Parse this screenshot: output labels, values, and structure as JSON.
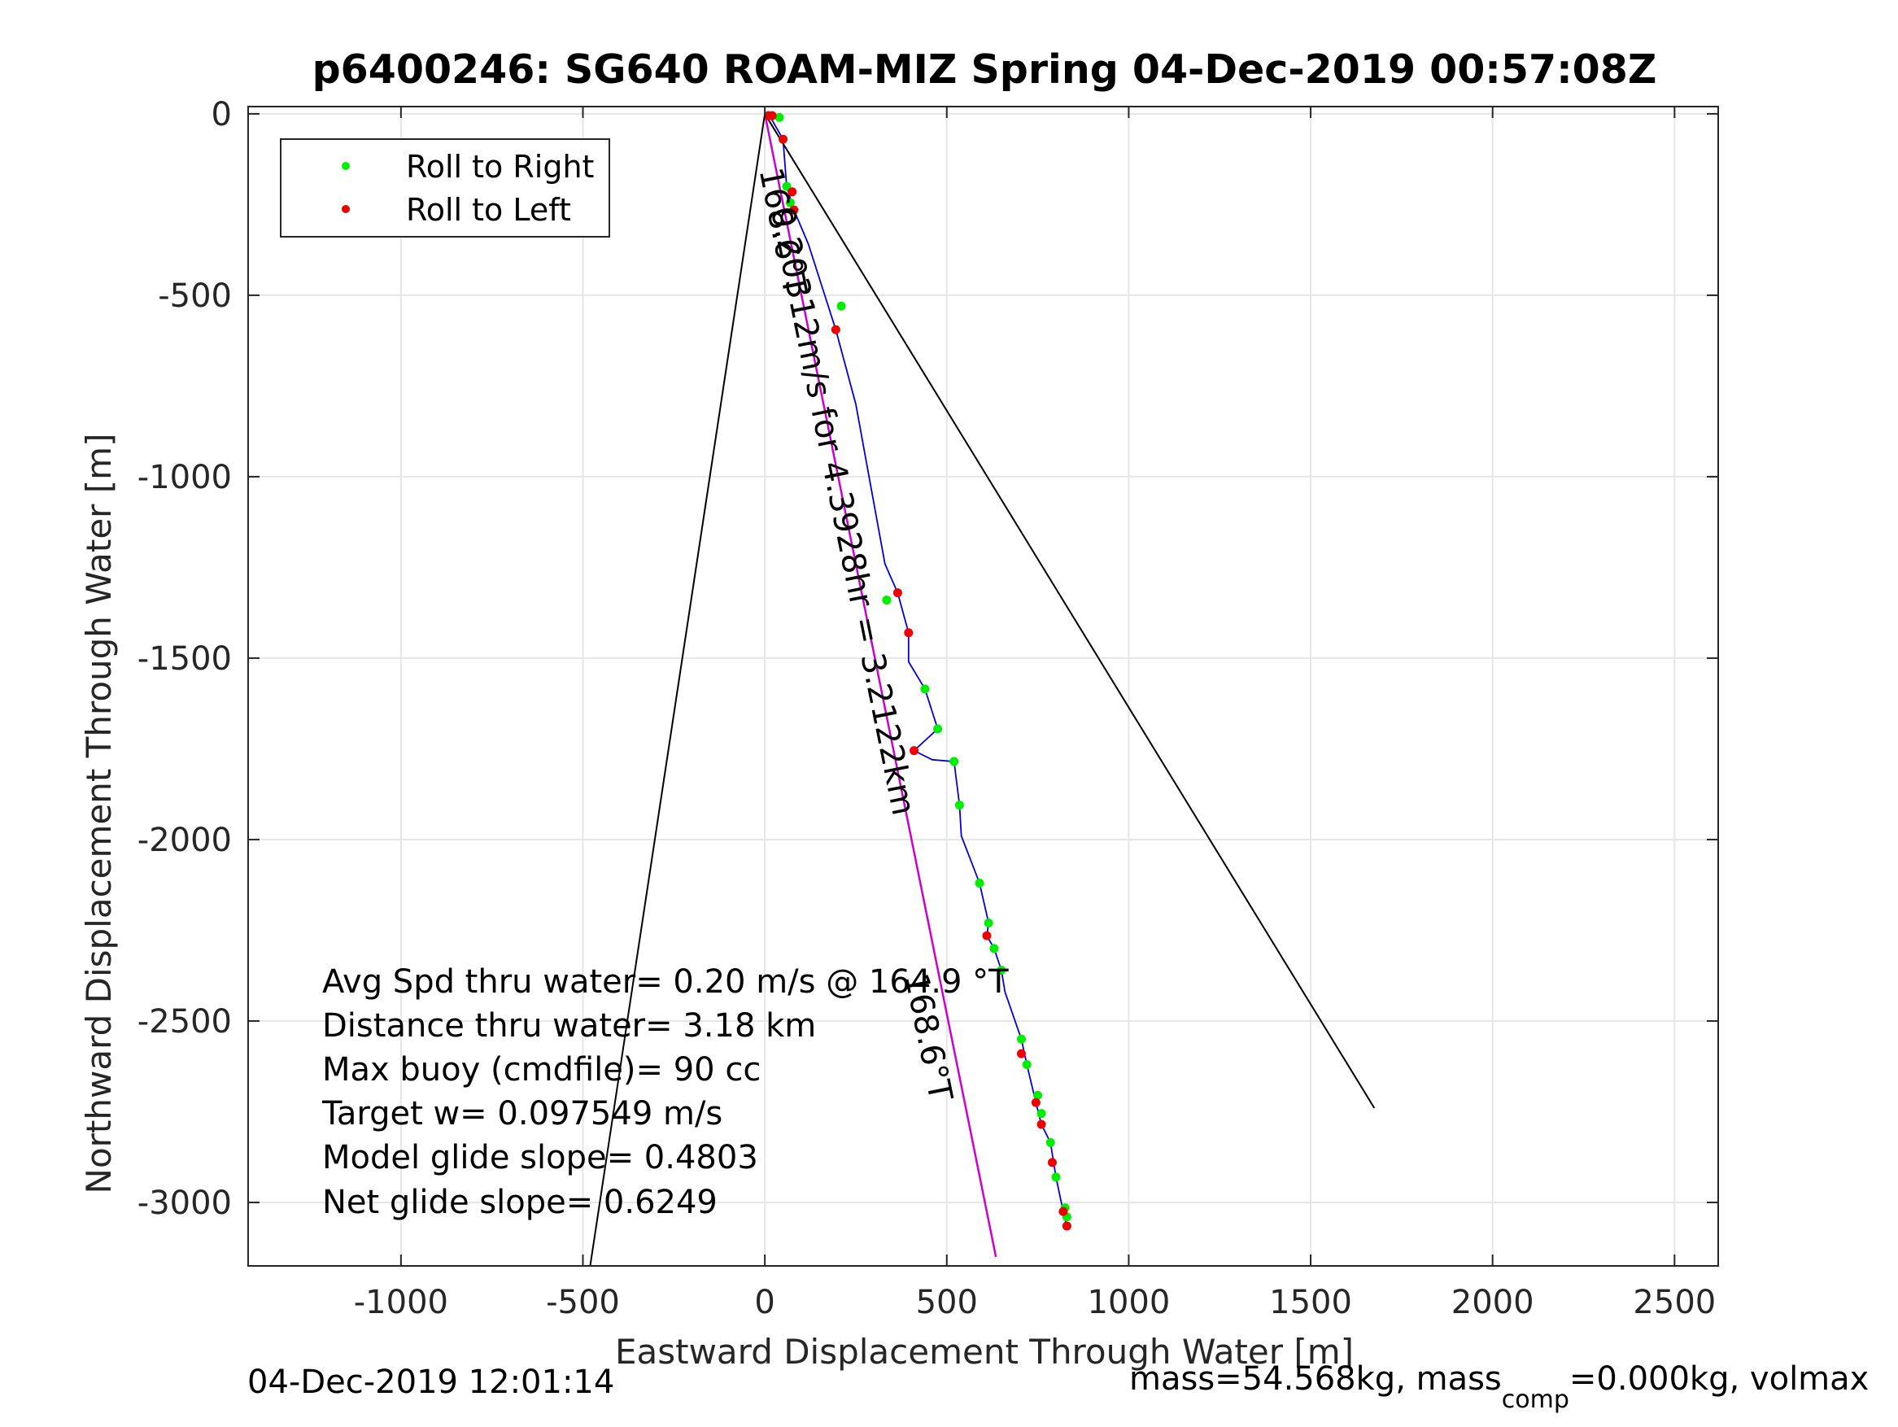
{
  "chart_data": {
    "type": "line",
    "title": "p6400246: SG640 ROAM-MIZ Spring 04-Dec-2019 00:57:08Z",
    "xlabel": "Eastward Displacement Through Water [m]",
    "ylabel": "Northward Displacement Through Water [m]",
    "xlim": [
      -1420,
      2620
    ],
    "ylim": [
      -3175,
      20
    ],
    "x_ticks": [
      -1000,
      -500,
      0,
      500,
      1000,
      1500,
      2000,
      2500
    ],
    "x_tick_labels": [
      "-1000",
      "-500",
      "0",
      "500",
      "1000",
      "1500",
      "2000",
      "2500"
    ],
    "y_ticks": [
      0,
      -500,
      -1000,
      -1500,
      -2000,
      -2500,
      -3000
    ],
    "y_tick_labels": [
      "0",
      "-500",
      "-1000",
      "-1500",
      "-2000",
      "-2500",
      "-3000"
    ],
    "grid": true,
    "legend_position": "top-left",
    "series": [
      {
        "name": "Roll to Right",
        "kind": "points",
        "color": "#00ee00",
        "points": [
          [
            40,
            -10
          ],
          [
            60,
            -200
          ],
          [
            70,
            -245
          ],
          [
            210,
            -530
          ],
          [
            335,
            -1340
          ],
          [
            440,
            -1585
          ],
          [
            475,
            -1695
          ],
          [
            520,
            -1785
          ],
          [
            535,
            -1905
          ],
          [
            590,
            -2120
          ],
          [
            615,
            -2230
          ],
          [
            630,
            -2300
          ],
          [
            650,
            -2360
          ],
          [
            705,
            -2550
          ],
          [
            720,
            -2620
          ],
          [
            750,
            -2705
          ],
          [
            760,
            -2755
          ],
          [
            785,
            -2835
          ],
          [
            800,
            -2930
          ],
          [
            825,
            -3015
          ],
          [
            830,
            -3040
          ]
        ]
      },
      {
        "name": "Roll to Left",
        "kind": "points",
        "color": "#ee0000",
        "points": [
          [
            10,
            -5
          ],
          [
            20,
            -5
          ],
          [
            50,
            -70
          ],
          [
            75,
            -215
          ],
          [
            80,
            -265
          ],
          [
            195,
            -595
          ],
          [
            365,
            -1320
          ],
          [
            395,
            -1430
          ],
          [
            410,
            -1755
          ],
          [
            610,
            -2265
          ],
          [
            705,
            -2590
          ],
          [
            745,
            -2725
          ],
          [
            760,
            -2785
          ],
          [
            790,
            -2890
          ],
          [
            820,
            -3025
          ],
          [
            830,
            -3065
          ]
        ]
      },
      {
        "name": "track",
        "kind": "line",
        "color": "#0000dd",
        "points": [
          [
            10,
            0
          ],
          [
            50,
            -70
          ],
          [
            60,
            -200
          ],
          [
            80,
            -265
          ],
          [
            120,
            -360
          ],
          [
            195,
            -595
          ],
          [
            250,
            -800
          ],
          [
            330,
            -1240
          ],
          [
            365,
            -1320
          ],
          [
            395,
            -1430
          ],
          [
            395,
            -1510
          ],
          [
            440,
            -1585
          ],
          [
            475,
            -1695
          ],
          [
            410,
            -1755
          ],
          [
            460,
            -1780
          ],
          [
            520,
            -1785
          ],
          [
            535,
            -1905
          ],
          [
            540,
            -1990
          ],
          [
            590,
            -2120
          ],
          [
            615,
            -2230
          ],
          [
            610,
            -2265
          ],
          [
            630,
            -2300
          ],
          [
            650,
            -2360
          ],
          [
            660,
            -2420
          ],
          [
            705,
            -2550
          ],
          [
            720,
            -2620
          ],
          [
            745,
            -2725
          ],
          [
            760,
            -2785
          ],
          [
            785,
            -2835
          ],
          [
            800,
            -2930
          ],
          [
            820,
            -3025
          ],
          [
            830,
            -3065
          ]
        ]
      },
      {
        "name": "heading",
        "kind": "line",
        "color": "#cc00cc",
        "points": [
          [
            0,
            0
          ],
          [
            635,
            -3150
          ]
        ]
      },
      {
        "name": "cone-left",
        "kind": "line",
        "color": "#000000",
        "points": [
          [
            0,
            0
          ],
          [
            -480,
            -3175
          ]
        ]
      },
      {
        "name": "cone-right",
        "kind": "line",
        "color": "#000000",
        "points": [
          [
            0,
            0
          ],
          [
            1675,
            -2740
          ]
        ]
      }
    ],
    "annotations": [
      {
        "text": "168.6°T",
        "x": 20,
        "y": -330,
        "angle": 78.6
      },
      {
        "text": "0.20312m/s for 4.3928hr = 3.2122km",
        "x": 185,
        "y": -1100,
        "angle": 78.6
      },
      {
        "text": "168.6°T",
        "x": 420,
        "y": -2550,
        "angle": 78.6
      }
    ],
    "stats": [
      "Avg Spd thru water=  0.20 m/s @ 164.9 °T",
      "Distance thru water=  3.18 km",
      "Max buoy (cmdfile)= 90 cc",
      "Target w= 0.097549 m/s",
      "Model glide slope= 0.4803",
      "Net glide slope= 0.6249"
    ],
    "footer_left": "04-Dec-2019 12:01:14",
    "footer_right": {
      "prefix": "mass=54.568kg, mass",
      "subscript": "comp",
      "suffix": "=0.000kg, volmax"
    }
  },
  "colors": {
    "axis": "#262626",
    "grid": "#e6e6e6",
    "right": "#00ee00",
    "left": "#ee0000",
    "track": "#0000dd",
    "heading": "#cc00cc",
    "line": "#000000"
  }
}
